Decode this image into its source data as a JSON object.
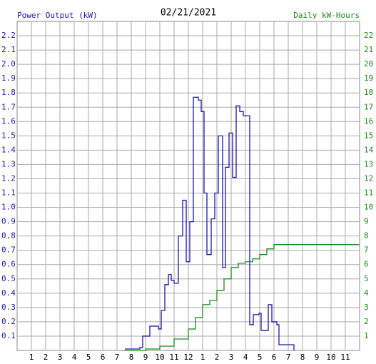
{
  "chart_data": {
    "type": "line",
    "title": "02/21/2021",
    "step": true,
    "grid": true,
    "xlim": [
      0,
      24
    ],
    "xticks": [
      1,
      2,
      3,
      4,
      5,
      6,
      7,
      8,
      9,
      10,
      11,
      12,
      {
        "value": 13,
        "label": "1"
      },
      {
        "value": 14,
        "label": "2"
      },
      {
        "value": 15,
        "label": "3"
      },
      {
        "value": 16,
        "label": "4"
      },
      {
        "value": 17,
        "label": "5"
      },
      {
        "value": 18,
        "label": "6"
      },
      {
        "value": 19,
        "label": "7"
      },
      {
        "value": 20,
        "label": "8"
      },
      {
        "value": 21,
        "label": "9"
      },
      {
        "value": 22,
        "label": "10"
      },
      {
        "value": 23,
        "label": "11"
      }
    ],
    "ylim": [
      0,
      2.3
    ],
    "yticks": [
      0.1,
      0.2,
      0.3,
      0.4,
      0.5,
      0.6,
      0.7,
      0.8,
      0.9,
      {
        "value": 1,
        "label": "1.0"
      },
      1.1,
      1.2,
      1.3,
      1.4,
      1.5,
      1.6,
      1.7,
      1.8,
      1.9,
      {
        "value": 2,
        "label": "2.0"
      },
      2.1,
      2.2
    ],
    "y2lim": [
      0,
      23
    ],
    "y2ticks": [
      1,
      2,
      3,
      4,
      5,
      6,
      7,
      8,
      9,
      10,
      11,
      12,
      13,
      14,
      15,
      16,
      17,
      18,
      19,
      20,
      21,
      22
    ],
    "series": [
      {
        "name": "Power Output (kW)",
        "color": "#1a1aa6",
        "x": [
          7.55,
          8.6,
          8.8,
          9.3,
          9.9,
          10.1,
          10.35,
          10.6,
          10.8,
          11.0,
          11.3,
          11.6,
          11.85,
          12.1,
          12.35,
          12.7,
          12.9,
          13.1,
          13.3,
          13.6,
          13.85,
          14.1,
          14.4,
          14.6,
          14.85,
          15.1,
          15.35,
          15.6,
          15.85,
          16.3,
          16.55,
          16.95,
          17.1,
          17.6,
          17.85,
          18.2,
          18.35,
          19.15,
          19.4
        ],
        "values": [
          0.01,
          0.02,
          0.1,
          0.17,
          0.15,
          0.28,
          0.46,
          0.53,
          0.49,
          0.47,
          0.8,
          1.05,
          0.62,
          0.9,
          1.77,
          1.75,
          1.67,
          1.1,
          0.67,
          0.92,
          1.1,
          1.5,
          0.58,
          1.28,
          1.52,
          1.21,
          1.71,
          1.67,
          1.64,
          0.18,
          0.25,
          0.26,
          0.14,
          0.32,
          0.2,
          0.18,
          0.04,
          0.04,
          0
        ]
      },
      {
        "name": "Daily kW-Hours",
        "color": "#1a8a1a",
        "axis": "y2",
        "x": [
          7.5,
          9,
          10,
          11,
          12,
          12.5,
          13,
          13.5,
          14,
          14.5,
          15,
          15.5,
          16,
          16.5,
          17,
          17.5,
          18,
          24
        ],
        "values": [
          0,
          0.1,
          0.3,
          0.8,
          1.5,
          2.3,
          3.2,
          3.5,
          4.2,
          5.0,
          5.8,
          6.1,
          6.2,
          6.4,
          6.7,
          7.1,
          7.4,
          7.4
        ]
      }
    ]
  }
}
